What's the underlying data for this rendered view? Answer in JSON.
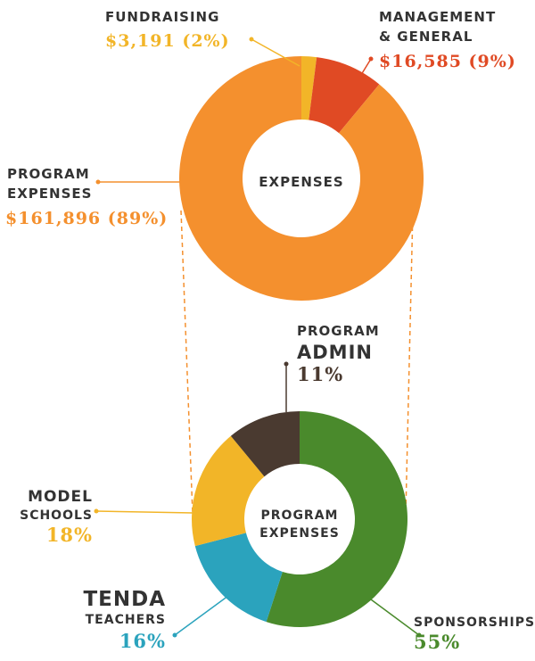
{
  "chart_data": [
    {
      "type": "pie",
      "center_label": "EXPENSES",
      "slices": [
        {
          "label_lines": [
            "FUNDRAISING"
          ],
          "value_text": "$3,191 (2%)",
          "value": 3191,
          "percent": 2,
          "color": "#f2b528"
        },
        {
          "label_lines": [
            "MANAGEMENT",
            "& GENERAL"
          ],
          "value_text": "$16,585 (9%)",
          "value": 16585,
          "percent": 9,
          "color": "#e04a24"
        },
        {
          "label_lines": [
            "PROGRAM",
            "EXPENSES"
          ],
          "value_text": "$161,896 (89%)",
          "value": 161896,
          "percent": 89,
          "color": "#f4902e"
        }
      ]
    },
    {
      "type": "pie",
      "center_label_lines": [
        "PROGRAM",
        "EXPENSES"
      ],
      "slices": [
        {
          "label_lines": [
            "SPONSORSHIPS"
          ],
          "value_text": "55%",
          "percent": 55,
          "color": "#4a8a2c"
        },
        {
          "label_lines": [
            "TENDA",
            "TEACHERS"
          ],
          "value_text": "16%",
          "percent": 16,
          "color": "#2ba3bd"
        },
        {
          "label_lines": [
            "MODEL",
            "SCHOOLS"
          ],
          "value_text": "18%",
          "percent": 18,
          "color": "#f2b528"
        },
        {
          "label_lines": [
            "PROGRAM",
            "ADMIN"
          ],
          "value_text": "11%",
          "percent": 11,
          "color": "#4a3a30"
        }
      ]
    }
  ],
  "colors": {
    "connector": "#f4902e",
    "label_text": "#333333"
  }
}
